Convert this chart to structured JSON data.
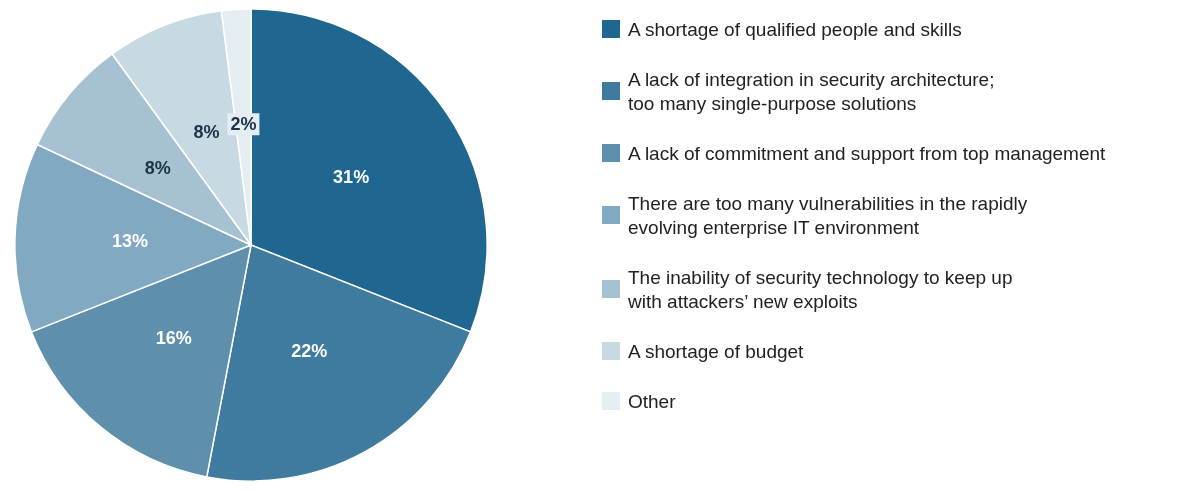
{
  "chart_data": {
    "type": "pie",
    "categories": [
      "A shortage of qualified people and skills",
      "A lack of integration in security architecture;\ntoo many single-purpose solutions",
      "A lack of commitment and support from top management",
      "There are too many vulnerabilities in the rapidly\nevolving enterprise IT environment",
      "The inability of security technology to keep up\nwith attackers’ new exploits",
      "A shortage of budget",
      "Other"
    ],
    "values": [
      31,
      22,
      16,
      13,
      8,
      8,
      2
    ],
    "colors": [
      "#1f6690",
      "#3e7b9e",
      "#5e90ae",
      "#81a9c1",
      "#a5c1d2",
      "#c7d9e3",
      "#e4edf2"
    ],
    "value_labels": [
      "31%",
      "22%",
      "16%",
      "13%",
      "8%",
      "8%",
      "2%"
    ],
    "legend": "right"
  }
}
